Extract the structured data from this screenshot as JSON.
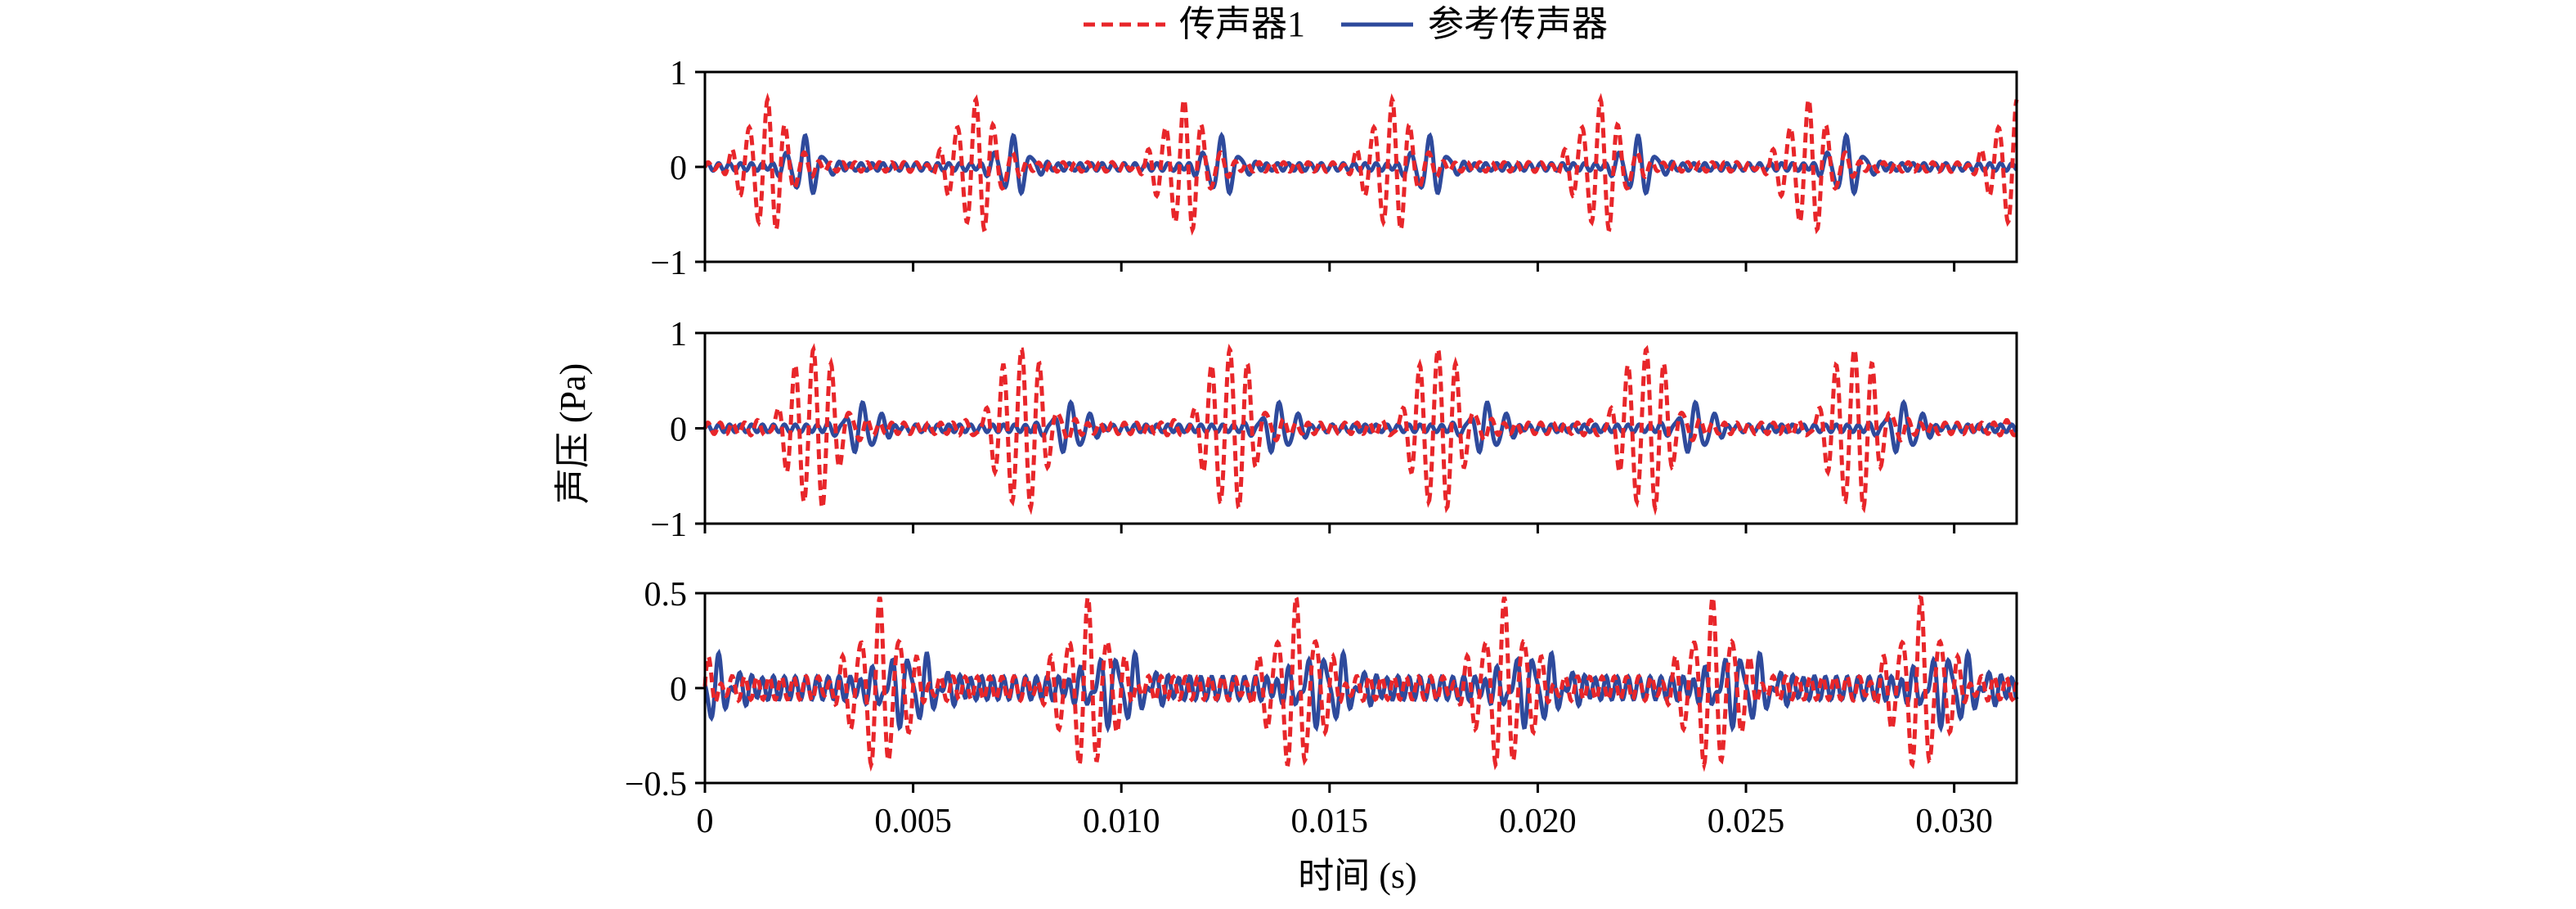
{
  "legend": {
    "placement": "top-center",
    "items": [
      {
        "label": "传声器1",
        "color": "#e8262a",
        "style": "dashed"
      },
      {
        "label": "参考传声器",
        "color": "#2e4a9c",
        "style": "solid"
      }
    ]
  },
  "axes": {
    "xlabel": "时间 (s)",
    "ylabel": "声压 (Pa)",
    "xlim": [
      0,
      0.0315
    ],
    "xticks": [
      0,
      0.005,
      0.01,
      0.015,
      0.02,
      0.025,
      0.03
    ],
    "xtick_labels": [
      "0",
      "0.005",
      "0.010",
      "0.015",
      "0.020",
      "0.025",
      "0.030"
    ]
  },
  "chart_data": [
    {
      "type": "line",
      "ylim": [
        -1,
        1
      ],
      "yticks": [
        -1,
        0,
        1
      ],
      "ytick_labels": [
        "−1",
        "0",
        "1"
      ],
      "period": 0.005,
      "series": [
        {
          "name": "传声器1",
          "color": "#e8262a",
          "pulse": {
            "center": 0.0015,
            "amplitude": 0.68,
            "width": 0.00048,
            "freq": 2300
          },
          "ripple": {
            "amplitude": 0.05,
            "freq": 3400
          }
        },
        {
          "name": "参考传声器",
          "color": "#2e4a9c",
          "pulse": {
            "center": 0.0024,
            "amplitude": 0.3,
            "width": 0.00035,
            "freq": 2300
          },
          "ripple": {
            "amplitude": 0.04,
            "freq": 3800
          }
        }
      ]
    },
    {
      "type": "line",
      "ylim": [
        -1,
        1
      ],
      "yticks": [
        -1,
        0,
        1
      ],
      "ytick_labels": [
        "−1",
        "0",
        "1"
      ],
      "period": 0.005,
      "series": [
        {
          "name": "传声器1",
          "color": "#e8262a",
          "pulse": {
            "center": 0.0026,
            "amplitude": 0.88,
            "width": 0.00052,
            "freq": 2300
          },
          "ripple": {
            "amplitude": 0.06,
            "freq": 3400
          }
        },
        {
          "name": "参考传声器",
          "color": "#2e4a9c",
          "pulse": {
            "center": 0.0038,
            "amplitude": 0.25,
            "width": 0.00038,
            "freq": 2300
          },
          "ripple": {
            "amplitude": 0.04,
            "freq": 3800
          }
        }
      ]
    },
    {
      "type": "line",
      "ylim": [
        -0.5,
        0.5
      ],
      "yticks": [
        -0.5,
        0,
        0.5
      ],
      "ytick_labels": [
        "−0.5",
        "0",
        "0.5"
      ],
      "period": 0.005,
      "series": [
        {
          "name": "传声器1",
          "color": "#e8262a",
          "pulse": {
            "center": 0.0042,
            "amplitude": 0.42,
            "width": 0.00055,
            "freq": 2200
          },
          "ripple": {
            "amplitude": 0.06,
            "freq": 3400
          }
        },
        {
          "name": "参考传声器",
          "color": "#2e4a9c",
          "pulse": {
            "center": 0.0049,
            "amplitude": 0.16,
            "width": 0.0006,
            "freq": 2300
          },
          "ripple": {
            "amplitude": 0.06,
            "freq": 3800
          }
        }
      ]
    }
  ]
}
